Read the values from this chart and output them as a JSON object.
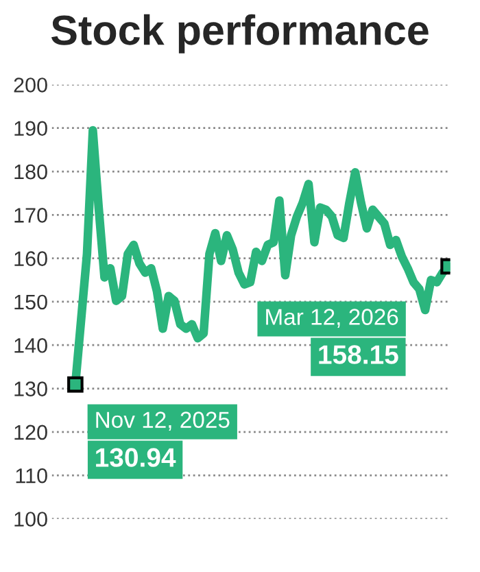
{
  "chart_data": {
    "type": "line",
    "title": "Stock performance",
    "categories": [
      null,
      null,
      null,
      null,
      null,
      null,
      null,
      null,
      null,
      null,
      null,
      null,
      null,
      null,
      null,
      null,
      null,
      null,
      null,
      null,
      null,
      null,
      null,
      null,
      null,
      null,
      null,
      null,
      null,
      null,
      null,
      null,
      null,
      null,
      null,
      null,
      null,
      null,
      null,
      null,
      null,
      null,
      null,
      null,
      null,
      null,
      null,
      null,
      null,
      null,
      null,
      null,
      null,
      null,
      null,
      null,
      null,
      null,
      null,
      null,
      null,
      null,
      null,
      null,
      null
    ],
    "series": [
      {
        "color": "#2bb57d",
        "values": [
          130.94,
          146,
          161,
          189.5,
          171.7,
          155.6,
          157.7,
          150.2,
          151.3,
          161,
          163.1,
          158.8,
          156.7,
          157.7,
          152.4,
          143.8,
          151.3,
          150.2,
          144.8,
          143.8,
          144.8,
          141.6,
          142.7,
          161,
          165.8,
          159.4,
          165.3,
          162,
          156.7,
          154,
          154.5,
          161.5,
          159.4,
          163.1,
          163.7,
          173.3,
          156.1,
          165.3,
          169.6,
          172.8,
          177.1,
          163.7,
          171.7,
          171.2,
          169.6,
          165.3,
          164.7,
          172.8,
          179.8,
          172.8,
          166.9,
          171.2,
          169.6,
          168,
          163.1,
          164.2,
          160.4,
          157.7,
          154.5,
          152.9,
          148.1,
          155,
          154.5,
          156.7,
          158.15
        ]
      }
    ],
    "ylim": [
      100,
      200
    ],
    "yticks": [
      100,
      110,
      120,
      130,
      140,
      150,
      160,
      170,
      180,
      190,
      200
    ],
    "tick_labels": "y",
    "grid": "y",
    "legend": false,
    "marker": "none",
    "line_style": "solid",
    "annotations": [
      "Nov 12, 2025\n130.94",
      "Mar 12, 2026\n158.15"
    ]
  }
}
